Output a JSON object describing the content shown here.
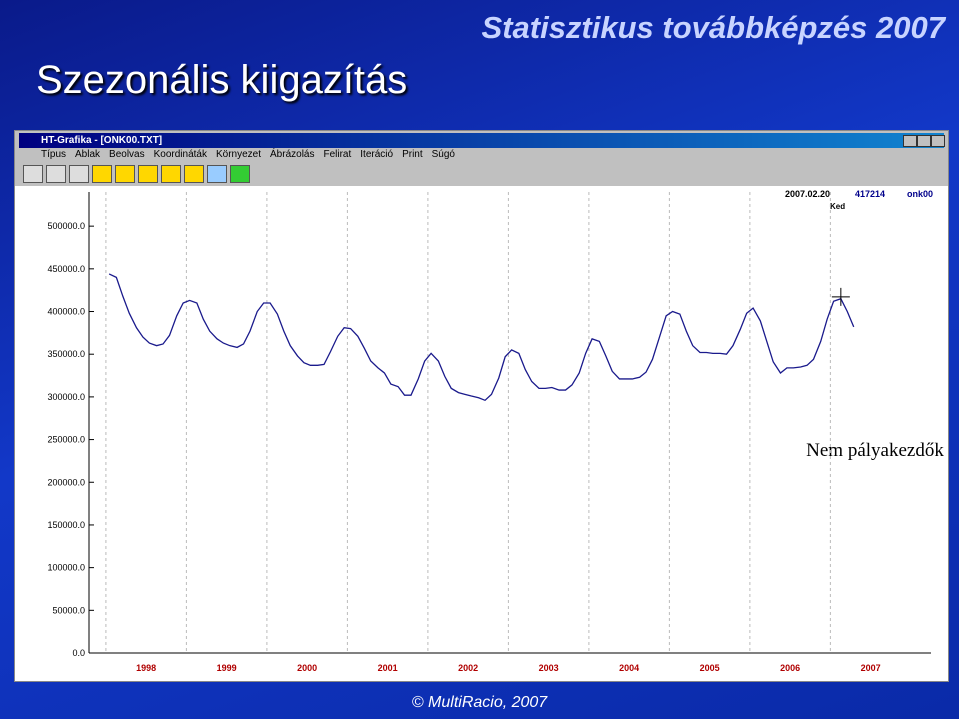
{
  "slide": {
    "header": "Statisztikus továbbképzés 2007",
    "title": "Szezonális kiigazítás",
    "footer": "© MultiRacio, 2007"
  },
  "window": {
    "title": "HT-Grafika - [ONK00.TXT]",
    "menu": [
      "Típus",
      "Ablak",
      "Beolvas",
      "Koordináták",
      "Környezet",
      "Ábrázolás",
      "Felirat",
      "Iteráció",
      "Print",
      "Súgó"
    ]
  },
  "chart_data": {
    "type": "line",
    "annotation": "Nem pályakezdők",
    "cursor": {
      "date": "2007.02.20",
      "value": 417214,
      "series": "onk00",
      "day": "Ked"
    },
    "x": [
      1998.04,
      1998.13,
      1998.21,
      1998.29,
      1998.38,
      1998.46,
      1998.54,
      1998.63,
      1998.71,
      1998.79,
      1998.88,
      1998.96,
      1999.04,
      1999.13,
      1999.21,
      1999.29,
      1999.38,
      1999.46,
      1999.54,
      1999.63,
      1999.71,
      1999.79,
      1999.88,
      1999.96,
      2000.04,
      2000.13,
      2000.21,
      2000.29,
      2000.38,
      2000.46,
      2000.54,
      2000.63,
      2000.71,
      2000.79,
      2000.88,
      2000.96,
      2001.04,
      2001.13,
      2001.21,
      2001.29,
      2001.38,
      2001.46,
      2001.54,
      2001.63,
      2001.71,
      2001.79,
      2001.88,
      2001.96,
      2002.04,
      2002.13,
      2002.21,
      2002.29,
      2002.38,
      2002.46,
      2002.54,
      2002.63,
      2002.71,
      2002.79,
      2002.88,
      2002.96,
      2003.04,
      2003.13,
      2003.21,
      2003.29,
      2003.38,
      2003.46,
      2003.54,
      2003.63,
      2003.71,
      2003.79,
      2003.88,
      2003.96,
      2004.04,
      2004.13,
      2004.21,
      2004.29,
      2004.38,
      2004.46,
      2004.54,
      2004.63,
      2004.71,
      2004.79,
      2004.88,
      2004.96,
      2005.04,
      2005.13,
      2005.21,
      2005.29,
      2005.38,
      2005.46,
      2005.54,
      2005.63,
      2005.71,
      2005.79,
      2005.88,
      2005.96,
      2006.04,
      2006.13,
      2006.21,
      2006.29,
      2006.38,
      2006.46,
      2006.54,
      2006.63,
      2006.71,
      2006.79,
      2006.88,
      2006.96,
      2007.04,
      2007.13,
      2007.21,
      2007.29
    ],
    "series": [
      {
        "color": "#1a1a8c",
        "values": [
          444000,
          440000,
          418000,
          398000,
          381000,
          370000,
          363000,
          360000,
          362000,
          372000,
          395000,
          410000,
          413000,
          410000,
          391000,
          377000,
          368000,
          363000,
          360000,
          358000,
          362000,
          377000,
          400000,
          410000,
          410000,
          397000,
          377000,
          360000,
          348000,
          340000,
          337000,
          337000,
          338000,
          353000,
          371000,
          381000,
          380000,
          371000,
          357000,
          342000,
          334000,
          328000,
          315000,
          312000,
          302000,
          302000,
          321000,
          342000,
          351000,
          342000,
          324000,
          310000,
          305000,
          303000,
          301000,
          299000,
          296000,
          303000,
          322000,
          347000,
          355000,
          351000,
          332000,
          318000,
          310000,
          310000,
          311000,
          308000,
          308000,
          314000,
          328000,
          351000,
          368000,
          365000,
          348000,
          330000,
          321000,
          321000,
          321000,
          323000,
          329000,
          344000,
          371000,
          395000,
          400000,
          397000,
          377000,
          360000,
          352000,
          352000,
          351000,
          351000,
          350000,
          360000,
          379000,
          398000,
          404000,
          389000,
          365000,
          341000,
          328000,
          334000,
          334000,
          335000,
          337000,
          344000,
          365000,
          391000,
          412000,
          415000,
          400000,
          382000
        ]
      }
    ],
    "xlim": [
      1997.79,
      2008.25
    ],
    "xticks": [
      {
        "value": 1998.5,
        "label": "1998"
      },
      {
        "value": 1999.5,
        "label": "1999"
      },
      {
        "value": 2000.5,
        "label": "2000"
      },
      {
        "value": 2001.5,
        "label": "2001"
      },
      {
        "value": 2002.5,
        "label": "2002"
      },
      {
        "value": 2003.5,
        "label": "2003"
      },
      {
        "value": 2004.5,
        "label": "2004"
      },
      {
        "value": 2005.5,
        "label": "2005"
      },
      {
        "value": 2006.5,
        "label": "2006"
      },
      {
        "value": 2007.5,
        "label": "2007"
      }
    ],
    "ylim": [
      0,
      540000
    ],
    "yticks": [
      {
        "value": 0,
        "label": "0.0"
      },
      {
        "value": 50000,
        "label": "50000.0"
      },
      {
        "value": 100000,
        "label": "100000.0"
      },
      {
        "value": 150000,
        "label": "150000.0"
      },
      {
        "value": 200000,
        "label": "200000.0"
      },
      {
        "value": 250000,
        "label": "250000.0"
      },
      {
        "value": 300000,
        "label": "300000.0"
      },
      {
        "value": 350000,
        "label": "350000.0"
      },
      {
        "value": 400000,
        "label": "400000.0"
      },
      {
        "value": 450000,
        "label": "450000.0"
      },
      {
        "value": 500000,
        "label": "500000.0"
      }
    ],
    "grid": true
  }
}
